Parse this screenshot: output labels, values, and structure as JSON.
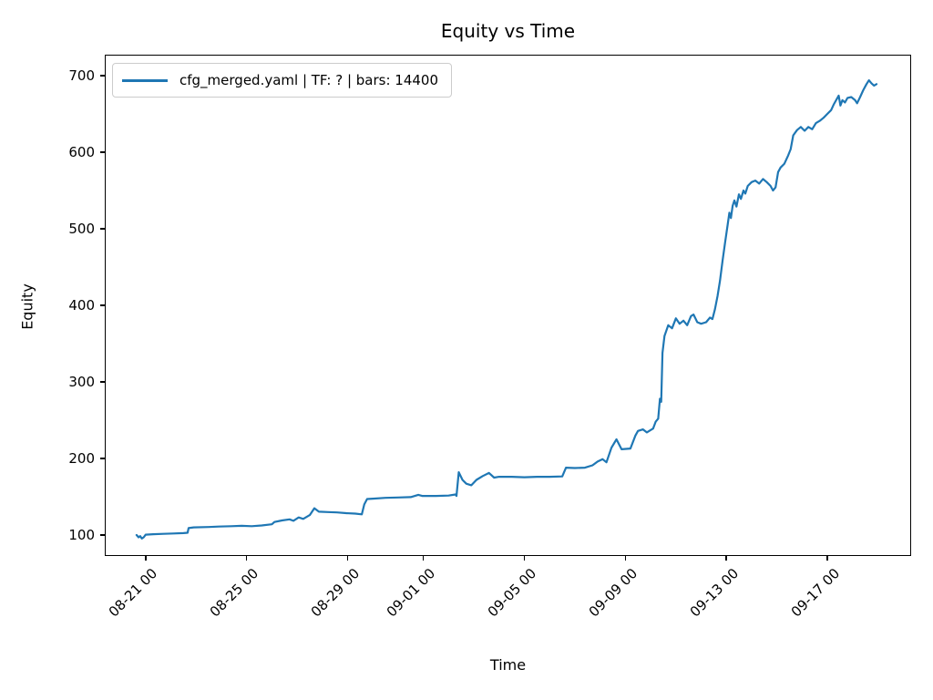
{
  "chart_data": {
    "type": "line",
    "title": "Equity vs Time",
    "xlabel": "Time",
    "ylabel": "Equity",
    "grid": false,
    "legend_position": "upper left",
    "x_unit_note": "t = days since 08-21 00:00",
    "xlim": [
      -1.62,
      30.32
    ],
    "ylim": [
      72.6,
      727.4
    ],
    "x_ticks": [
      {
        "t": 0,
        "label": "08-21 00"
      },
      {
        "t": 4,
        "label": "08-25 00"
      },
      {
        "t": 8,
        "label": "08-29 00"
      },
      {
        "t": 11,
        "label": "09-01 00"
      },
      {
        "t": 15,
        "label": "09-05 00"
      },
      {
        "t": 19,
        "label": "09-09 00"
      },
      {
        "t": 23,
        "label": "09-13 00"
      },
      {
        "t": 27,
        "label": "09-17 00"
      }
    ],
    "y_ticks": [
      100,
      200,
      300,
      400,
      500,
      600,
      700
    ],
    "series": [
      {
        "name": "cfg_merged.yaml | TF: ? | bars: 14400",
        "color": "#1f77b4",
        "points": [
          [
            -0.36,
            100
          ],
          [
            -0.28,
            97
          ],
          [
            -0.22,
            98.5
          ],
          [
            -0.15,
            95.5
          ],
          [
            -0.08,
            97
          ],
          [
            0,
            100.5
          ],
          [
            0.3,
            101
          ],
          [
            0.7,
            101.5
          ],
          [
            1.1,
            102
          ],
          [
            1.5,
            102.5
          ],
          [
            1.66,
            103
          ],
          [
            1.7,
            109
          ],
          [
            1.9,
            110
          ],
          [
            2.5,
            110.5
          ],
          [
            2.9,
            111
          ],
          [
            3.4,
            111.5
          ],
          [
            3.8,
            112
          ],
          [
            4.2,
            111.5
          ],
          [
            4.6,
            112.5
          ],
          [
            5,
            114
          ],
          [
            5.1,
            117
          ],
          [
            5.4,
            119
          ],
          [
            5.7,
            120.5
          ],
          [
            5.85,
            118.5
          ],
          [
            6.06,
            123
          ],
          [
            6.24,
            121
          ],
          [
            6.5,
            126
          ],
          [
            6.68,
            135
          ],
          [
            6.86,
            130.5
          ],
          [
            7.22,
            130
          ],
          [
            7.58,
            129.5
          ],
          [
            7.94,
            128.5
          ],
          [
            8.3,
            128
          ],
          [
            8.56,
            127
          ],
          [
            8.66,
            140
          ],
          [
            8.77,
            147
          ],
          [
            9,
            147.5
          ],
          [
            9.5,
            148.5
          ],
          [
            10,
            149
          ],
          [
            10.5,
            149.5
          ],
          [
            10.8,
            152.5
          ],
          [
            10.95,
            151
          ],
          [
            11.5,
            151
          ],
          [
            12,
            151.5
          ],
          [
            12.27,
            153
          ],
          [
            12.31,
            151
          ],
          [
            12.4,
            182
          ],
          [
            12.55,
            172
          ],
          [
            12.7,
            167
          ],
          [
            12.9,
            165
          ],
          [
            13.1,
            172
          ],
          [
            13.35,
            177
          ],
          [
            13.6,
            181
          ],
          [
            13.8,
            175
          ],
          [
            14,
            176
          ],
          [
            14.5,
            176
          ],
          [
            15,
            175.5
          ],
          [
            15.5,
            176
          ],
          [
            16,
            176
          ],
          [
            16.5,
            176.5
          ],
          [
            16.65,
            188
          ],
          [
            17,
            187.5
          ],
          [
            17.4,
            188
          ],
          [
            17.7,
            191
          ],
          [
            17.9,
            196
          ],
          [
            18.1,
            199
          ],
          [
            18.25,
            195
          ],
          [
            18.45,
            214
          ],
          [
            18.65,
            225
          ],
          [
            18.85,
            212
          ],
          [
            19.2,
            213
          ],
          [
            19.4,
            230
          ],
          [
            19.5,
            236
          ],
          [
            19.7,
            238
          ],
          [
            19.85,
            234
          ],
          [
            20.1,
            239
          ],
          [
            20.2,
            248
          ],
          [
            20.3,
            252
          ],
          [
            20.37,
            278
          ],
          [
            20.42,
            274
          ],
          [
            20.47,
            338
          ],
          [
            20.55,
            360
          ],
          [
            20.7,
            374
          ],
          [
            20.85,
            370
          ],
          [
            21,
            383
          ],
          [
            21.15,
            376
          ],
          [
            21.3,
            380
          ],
          [
            21.45,
            374
          ],
          [
            21.6,
            386
          ],
          [
            21.7,
            388
          ],
          [
            21.85,
            378
          ],
          [
            22,
            376
          ],
          [
            22.2,
            378
          ],
          [
            22.35,
            384
          ],
          [
            22.45,
            382
          ],
          [
            22.55,
            395
          ],
          [
            22.65,
            412
          ],
          [
            22.75,
            432
          ],
          [
            22.85,
            458
          ],
          [
            22.95,
            482
          ],
          [
            23.05,
            505
          ],
          [
            23.12,
            521
          ],
          [
            23.18,
            514
          ],
          [
            23.25,
            530
          ],
          [
            23.32,
            537
          ],
          [
            23.4,
            529
          ],
          [
            23.5,
            545
          ],
          [
            23.58,
            539
          ],
          [
            23.68,
            550
          ],
          [
            23.75,
            546
          ],
          [
            23.85,
            556
          ],
          [
            24,
            561
          ],
          [
            24.15,
            563
          ],
          [
            24.3,
            559
          ],
          [
            24.45,
            565
          ],
          [
            24.6,
            561
          ],
          [
            24.75,
            556
          ],
          [
            24.85,
            550
          ],
          [
            24.95,
            554
          ],
          [
            25.05,
            574
          ],
          [
            25.15,
            580
          ],
          [
            25.3,
            585
          ],
          [
            25.45,
            596
          ],
          [
            25.55,
            604
          ],
          [
            25.65,
            622
          ],
          [
            25.8,
            629
          ],
          [
            25.95,
            633
          ],
          [
            26.1,
            628
          ],
          [
            26.25,
            633
          ],
          [
            26.4,
            630
          ],
          [
            26.55,
            638
          ],
          [
            26.7,
            641
          ],
          [
            26.85,
            645
          ],
          [
            27,
            650
          ],
          [
            27.15,
            655
          ],
          [
            27.25,
            662
          ],
          [
            27.35,
            668
          ],
          [
            27.45,
            674
          ],
          [
            27.52,
            661
          ],
          [
            27.6,
            668
          ],
          [
            27.7,
            665
          ],
          [
            27.8,
            671
          ],
          [
            27.95,
            672
          ],
          [
            28.1,
            668
          ],
          [
            28.18,
            664
          ],
          [
            28.3,
            672
          ],
          [
            28.42,
            681
          ],
          [
            28.55,
            689
          ],
          [
            28.65,
            694
          ],
          [
            28.75,
            690
          ],
          [
            28.85,
            687
          ],
          [
            28.95,
            689
          ]
        ]
      }
    ]
  }
}
